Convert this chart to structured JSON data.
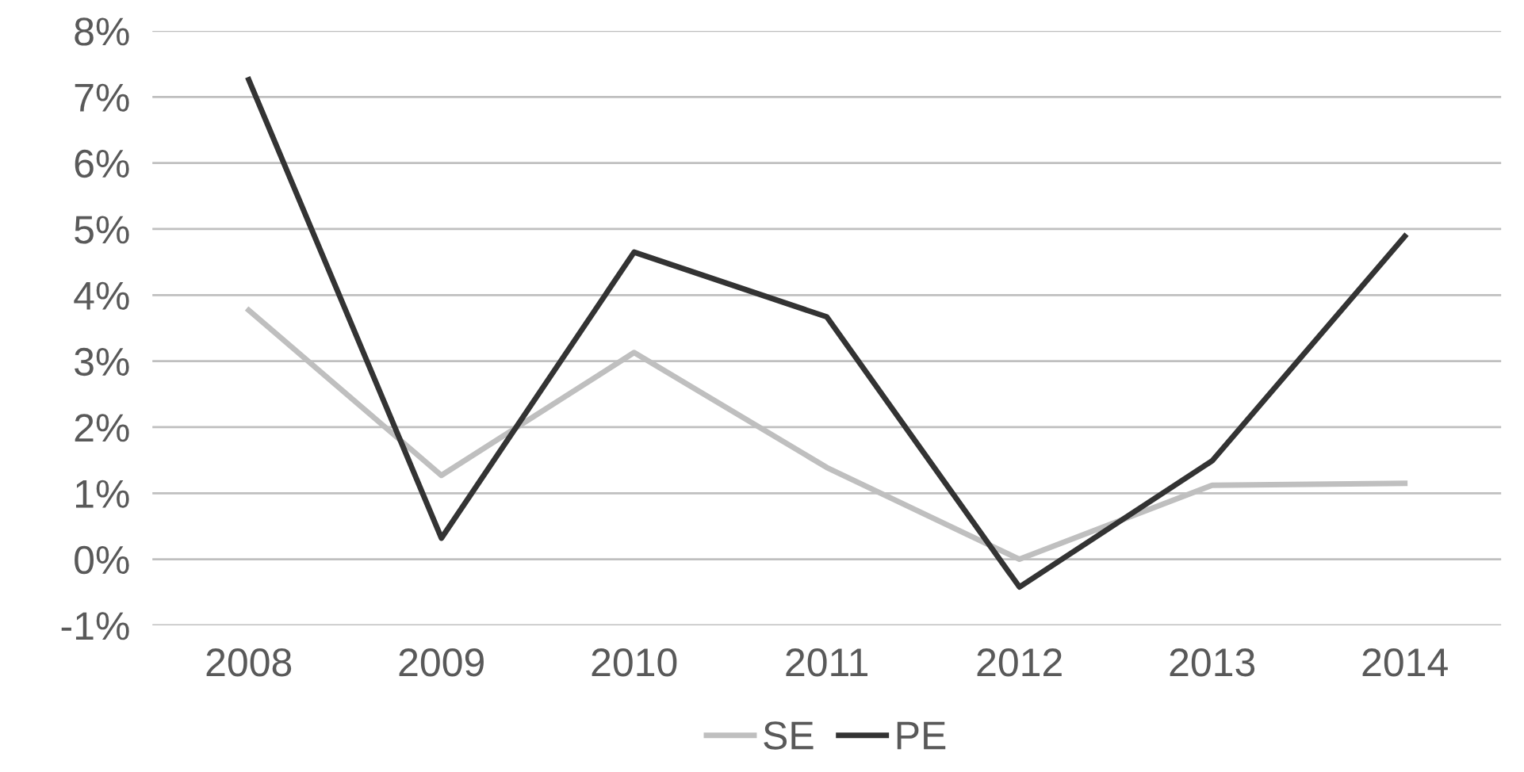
{
  "chart_data": {
    "type": "line",
    "categories": [
      "2008",
      "2009",
      "2010",
      "2011",
      "2012",
      "2013",
      "2014"
    ],
    "series": [
      {
        "name": "SE",
        "color": "#bfbfbf",
        "values": [
          3.77,
          1.27,
          3.13,
          1.39,
          0.0,
          1.12,
          1.15
        ]
      },
      {
        "name": "PE",
        "color": "#333333",
        "values": [
          7.26,
          0.32,
          4.65,
          3.67,
          -0.42,
          1.49,
          4.89
        ]
      }
    ],
    "ylim": [
      -1,
      8
    ],
    "yticks": [
      {
        "value": -1,
        "label": "-1%"
      },
      {
        "value": 0,
        "label": "0%"
      },
      {
        "value": 1,
        "label": "1%"
      },
      {
        "value": 2,
        "label": "2%"
      },
      {
        "value": 3,
        "label": "3%"
      },
      {
        "value": 4,
        "label": "4%"
      },
      {
        "value": 5,
        "label": "5%"
      },
      {
        "value": 6,
        "label": "6%"
      },
      {
        "value": 7,
        "label": "7%"
      },
      {
        "value": 8,
        "label": "8%"
      }
    ],
    "grid": "y",
    "legend": "bottom",
    "marker": "none",
    "line_style": "solid"
  }
}
